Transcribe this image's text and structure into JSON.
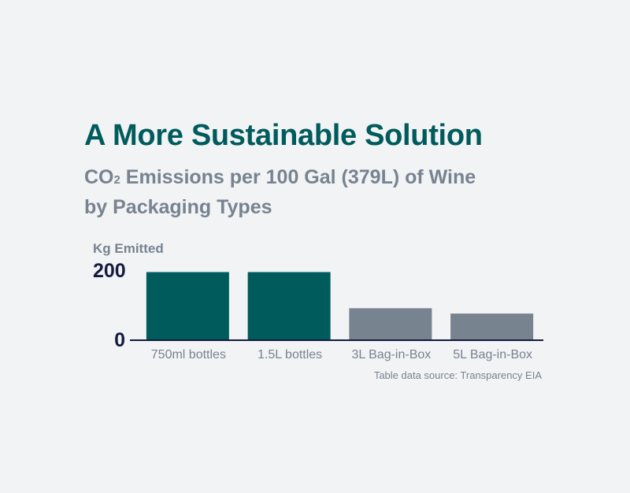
{
  "header": {
    "title": "A More Sustainable Solution",
    "subtitle_prefix": "CO",
    "subtitle_subscript": "2",
    "subtitle_line1_rest": " Emissions per 100 Gal (379L) of Wine",
    "subtitle_line2": "by Packaging Types"
  },
  "source": "Table data source: Transparency EIA",
  "colors": {
    "title": "#005b5c",
    "subtitle": "#77838f",
    "highlight_bar": "#005b5c",
    "muted_bar": "#77838f",
    "axis": "#141b3f",
    "tick_label": "#141b3f",
    "category_label": "#77838f"
  },
  "chart_data": {
    "type": "bar",
    "ylabel": "Kg Emitted",
    "ylim": [
      0,
      200
    ],
    "yticks": [
      "0",
      "200"
    ],
    "categories": [
      "750ml bottles",
      "1.5L bottles",
      "3L Bag-in-Box",
      "5L Bag-in-Box"
    ],
    "values": [
      190,
      190,
      88,
      73
    ],
    "highlight": [
      true,
      true,
      false,
      false
    ],
    "grid": false
  }
}
